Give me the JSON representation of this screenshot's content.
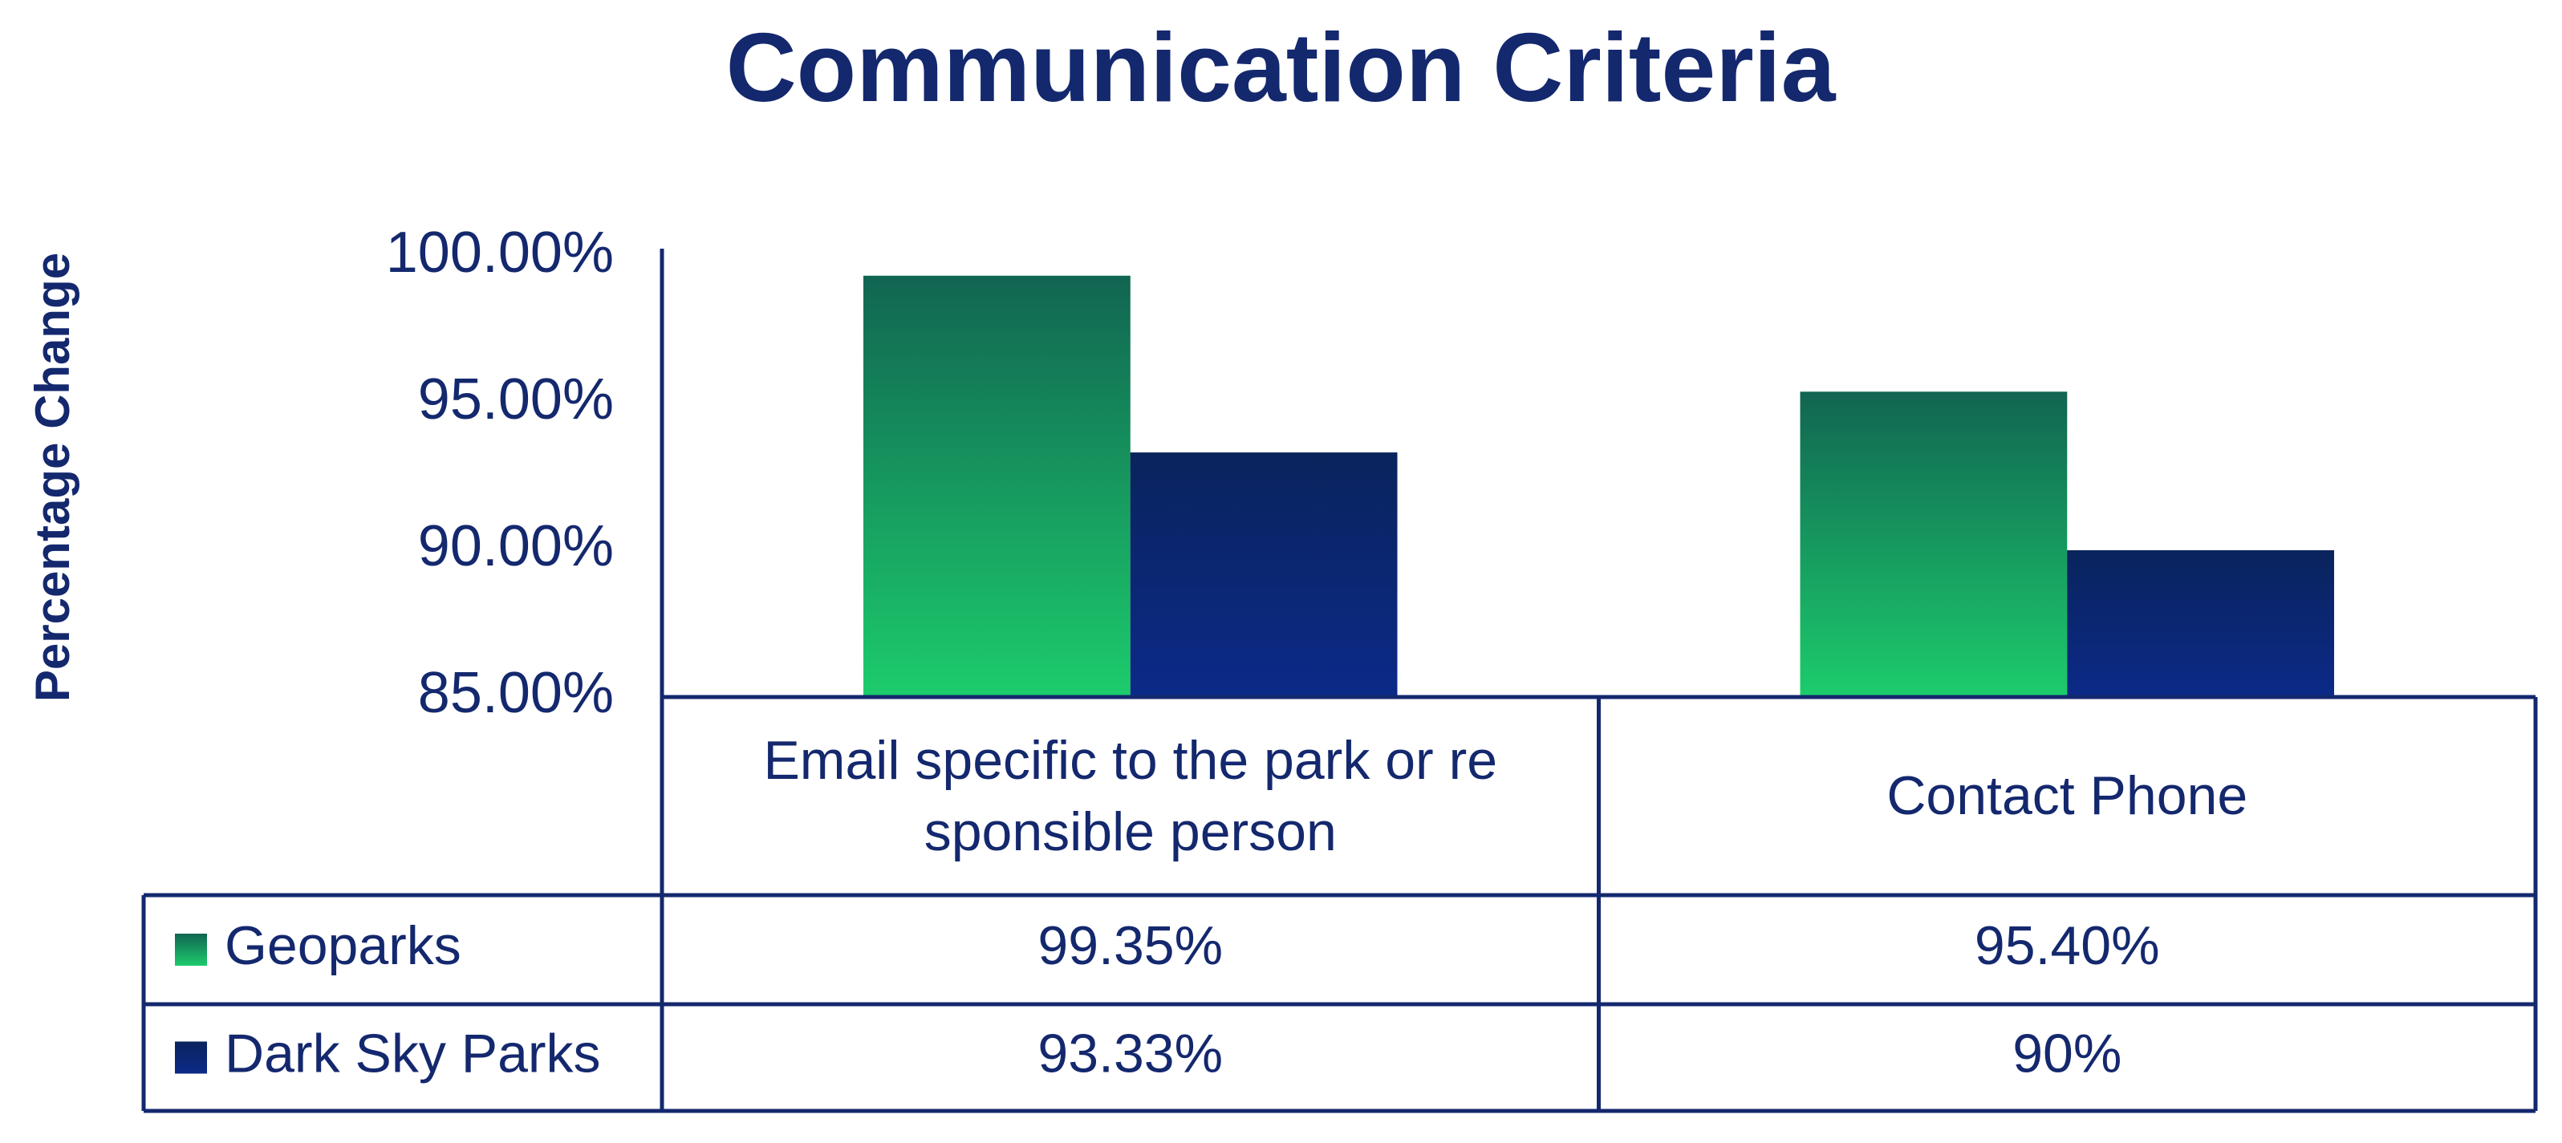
{
  "chart_data": {
    "type": "bar",
    "title": "Communication Criteria",
    "y_label": "Percentage Change",
    "categories": [
      "Email specific to the park or re sponsible person",
      "Contact Phone"
    ],
    "series": [
      {
        "name": "Geoparks",
        "color": "#1ccc6c",
        "values": [
          99.35,
          95.4
        ],
        "value_labels": [
          "99.35%",
          "95.40%"
        ]
      },
      {
        "name": "Dark Sky Parks",
        "color": "#0b2a88",
        "values": [
          93.33,
          90
        ],
        "value_labels": [
          "93.33%",
          "90%"
        ]
      }
    ],
    "ylim": [
      85,
      100
    ],
    "yticks": [
      {
        "value": 85,
        "label": "85.00%"
      },
      {
        "value": 90,
        "label": "90.00%"
      },
      {
        "value": 95,
        "label": "95.00%"
      },
      {
        "value": 100,
        "label": "100.00%"
      }
    ],
    "grid": false,
    "data_table": true
  }
}
